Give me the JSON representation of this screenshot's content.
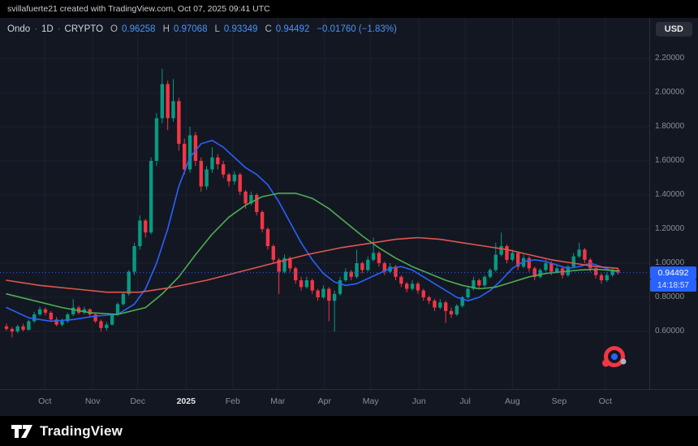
{
  "attribution": "svillafuerte21 created with TradingView.com, Oct 07, 2025 09:41 UTC",
  "legend": {
    "symbol": "Ondo",
    "separator": "·",
    "interval": "1D",
    "market": "CRYPTO",
    "open_label": "O",
    "open": "0.96258",
    "high_label": "H",
    "high": "0.97068",
    "low_label": "L",
    "low": "0.93349",
    "close_label": "C",
    "close": "0.94492",
    "change": "−0.01760 (−1.83%)"
  },
  "currency_button": "USD",
  "price_scale": {
    "labels": [
      "2.20000",
      "2.00000",
      "1.80000",
      "1.60000",
      "1.40000",
      "1.20000",
      "1.00000",
      "0.80000",
      "0.60000"
    ],
    "last_price_label": "0.94492",
    "countdown": "14:18:57"
  },
  "footer": {
    "brand": "TradingView",
    "logo_icon": "tradingview-logo"
  },
  "icons": {
    "sticker": "red-record-sticker-icon"
  },
  "colors": {
    "background": "#131722",
    "frame": "#000000",
    "grid": "#1c2230",
    "border": "#2a2e39",
    "up": "#089981",
    "down": "#f23645",
    "accent": "#2962FF",
    "ma_fast": "#2962FF",
    "ma_mid": "#4CAF50",
    "ma_slow": "#E0564F",
    "axis_text": "#8a8e99",
    "value_text": "#4894f8"
  },
  "chart_data": {
    "type": "candlestick",
    "title": "Ondo 1D CRYPTO",
    "ylabel": "Price (USD)",
    "ylim": [
      0.52,
      2.25
    ],
    "grid": true,
    "price_gridlines": [
      2.2,
      2.0,
      1.8,
      1.6,
      1.4,
      1.2,
      1.0,
      0.8,
      0.6
    ],
    "time_ticks": [
      {
        "label": "Oct",
        "index": 6.9
      },
      {
        "label": "Nov",
        "index": 15.5
      },
      {
        "label": "Dec",
        "index": 23.6
      },
      {
        "label": "2025",
        "index": 32.3,
        "emphasis": true
      },
      {
        "label": "Feb",
        "index": 40.7
      },
      {
        "label": "Mar",
        "index": 48.8
      },
      {
        "label": "Apr",
        "index": 57.2
      },
      {
        "label": "May",
        "index": 65.5
      },
      {
        "label": "Jun",
        "index": 74.2
      },
      {
        "label": "Jul",
        "index": 82.5
      },
      {
        "label": "Aug",
        "index": 91.0
      },
      {
        "label": "Sep",
        "index": 99.4
      },
      {
        "label": "Oct",
        "index": 107.7
      }
    ],
    "last_price": 0.94492,
    "price_line": 0.94492,
    "candles": [
      [
        0.63,
        0.645,
        0.605,
        0.615
      ],
      [
        0.615,
        0.625,
        0.565,
        0.6
      ],
      [
        0.6,
        0.64,
        0.59,
        0.63
      ],
      [
        0.63,
        0.645,
        0.6,
        0.61
      ],
      [
        0.61,
        0.67,
        0.605,
        0.66
      ],
      [
        0.66,
        0.715,
        0.65,
        0.7
      ],
      [
        0.7,
        0.745,
        0.69,
        0.73
      ],
      [
        0.73,
        0.74,
        0.695,
        0.71
      ],
      [
        0.71,
        0.72,
        0.66,
        0.67
      ],
      [
        0.67,
        0.685,
        0.63,
        0.64
      ],
      [
        0.64,
        0.675,
        0.63,
        0.66
      ],
      [
        0.66,
        0.71,
        0.65,
        0.7
      ],
      [
        0.7,
        0.79,
        0.69,
        0.74
      ],
      [
        0.74,
        0.75,
        0.7,
        0.71
      ],
      [
        0.71,
        0.745,
        0.7,
        0.73
      ],
      [
        0.73,
        0.735,
        0.685,
        0.7
      ],
      [
        0.7,
        0.71,
        0.65,
        0.66
      ],
      [
        0.66,
        0.67,
        0.6,
        0.62
      ],
      [
        0.62,
        0.655,
        0.605,
        0.64
      ],
      [
        0.64,
        0.705,
        0.635,
        0.7
      ],
      [
        0.7,
        0.77,
        0.69,
        0.76
      ],
      [
        0.76,
        0.83,
        0.75,
        0.82
      ],
      [
        0.82,
        0.96,
        0.81,
        0.95
      ],
      [
        0.95,
        1.12,
        0.93,
        1.1
      ],
      [
        1.1,
        1.28,
        1.08,
        1.25
      ],
      [
        1.25,
        1.26,
        1.15,
        1.18
      ],
      [
        1.18,
        1.62,
        1.17,
        1.6
      ],
      [
        1.6,
        1.88,
        1.57,
        1.85
      ],
      [
        1.85,
        2.14,
        1.82,
        2.05
      ],
      [
        2.05,
        2.07,
        1.78,
        1.85
      ],
      [
        1.85,
        2.08,
        1.83,
        1.95
      ],
      [
        1.95,
        1.97,
        1.66,
        1.7
      ],
      [
        1.7,
        1.73,
        1.52,
        1.55
      ],
      [
        1.55,
        1.8,
        1.53,
        1.75
      ],
      [
        1.75,
        1.77,
        1.57,
        1.6
      ],
      [
        1.6,
        1.62,
        1.42,
        1.45
      ],
      [
        1.45,
        1.57,
        1.43,
        1.55
      ],
      [
        1.55,
        1.68,
        1.53,
        1.62
      ],
      [
        1.62,
        1.64,
        1.55,
        1.58
      ],
      [
        1.58,
        1.6,
        1.5,
        1.52
      ],
      [
        1.52,
        1.53,
        1.45,
        1.48
      ],
      [
        1.48,
        1.54,
        1.46,
        1.52
      ],
      [
        1.52,
        1.53,
        1.4,
        1.42
      ],
      [
        1.42,
        1.43,
        1.32,
        1.35
      ],
      [
        1.35,
        1.42,
        1.34,
        1.4
      ],
      [
        1.4,
        1.41,
        1.28,
        1.3
      ],
      [
        1.3,
        1.31,
        1.18,
        1.2
      ],
      [
        1.2,
        1.21,
        1.08,
        1.1
      ],
      [
        1.1,
        1.11,
        1.0,
        1.02
      ],
      [
        1.02,
        1.03,
        0.82,
        0.95
      ],
      [
        0.95,
        1.05,
        0.94,
        1.03
      ],
      [
        1.03,
        1.04,
        0.95,
        0.97
      ],
      [
        0.97,
        0.98,
        0.88,
        0.9
      ],
      [
        0.9,
        0.92,
        0.84,
        0.86
      ],
      [
        0.86,
        0.92,
        0.85,
        0.9
      ],
      [
        0.9,
        0.91,
        0.82,
        0.84
      ],
      [
        0.84,
        0.85,
        0.78,
        0.8
      ],
      [
        0.8,
        0.87,
        0.79,
        0.85
      ],
      [
        0.85,
        0.86,
        0.66,
        0.78
      ],
      [
        0.78,
        0.84,
        0.6,
        0.82
      ],
      [
        0.82,
        0.92,
        0.81,
        0.9
      ],
      [
        0.9,
        0.97,
        0.89,
        0.95
      ],
      [
        0.95,
        0.96,
        0.9,
        0.92
      ],
      [
        0.92,
        1.08,
        0.91,
        1.0
      ],
      [
        1.0,
        1.01,
        0.94,
        0.96
      ],
      [
        0.96,
        1.04,
        0.95,
        1.02
      ],
      [
        1.02,
        1.15,
        1.01,
        1.06
      ],
      [
        1.06,
        1.07,
        0.98,
        1.0
      ],
      [
        1.0,
        1.01,
        0.93,
        0.95
      ],
      [
        0.95,
        1.0,
        0.94,
        0.98
      ],
      [
        0.98,
        0.99,
        0.9,
        0.92
      ],
      [
        0.92,
        0.93,
        0.86,
        0.88
      ],
      [
        0.88,
        0.89,
        0.83,
        0.85
      ],
      [
        0.85,
        0.9,
        0.84,
        0.88
      ],
      [
        0.88,
        0.89,
        0.82,
        0.84
      ],
      [
        0.84,
        0.85,
        0.78,
        0.8
      ],
      [
        0.8,
        0.81,
        0.76,
        0.78
      ],
      [
        0.78,
        0.79,
        0.72,
        0.74
      ],
      [
        0.74,
        0.79,
        0.73,
        0.77
      ],
      [
        0.77,
        0.78,
        0.65,
        0.72
      ],
      [
        0.72,
        0.74,
        0.68,
        0.7
      ],
      [
        0.7,
        0.76,
        0.69,
        0.75
      ],
      [
        0.75,
        0.81,
        0.74,
        0.8
      ],
      [
        0.8,
        0.86,
        0.79,
        0.85
      ],
      [
        0.85,
        0.92,
        0.84,
        0.9
      ],
      [
        0.9,
        0.91,
        0.85,
        0.87
      ],
      [
        0.87,
        0.93,
        0.86,
        0.92
      ],
      [
        0.92,
        0.97,
        0.91,
        0.96
      ],
      [
        0.96,
        1.12,
        0.95,
        1.05
      ],
      [
        1.05,
        1.18,
        1.04,
        1.1
      ],
      [
        1.1,
        1.11,
        1.0,
        1.02
      ],
      [
        1.02,
        1.08,
        1.01,
        1.06
      ],
      [
        1.06,
        1.07,
        0.96,
        0.98
      ],
      [
        0.98,
        1.05,
        0.97,
        1.03
      ],
      [
        1.03,
        1.04,
        0.95,
        0.97
      ],
      [
        0.97,
        0.98,
        0.9,
        0.92
      ],
      [
        0.92,
        0.97,
        0.91,
        0.96
      ],
      [
        0.96,
        1.02,
        0.95,
        1.0
      ],
      [
        1.0,
        1.01,
        0.93,
        0.95
      ],
      [
        0.95,
        0.99,
        0.94,
        0.97
      ],
      [
        0.97,
        0.98,
        0.91,
        0.93
      ],
      [
        0.93,
        0.99,
        0.92,
        0.98
      ],
      [
        0.98,
        1.06,
        0.97,
        1.04
      ],
      [
        1.04,
        1.12,
        1.03,
        1.08
      ],
      [
        1.08,
        1.09,
        1.0,
        1.02
      ],
      [
        1.02,
        1.03,
        0.95,
        0.97
      ],
      [
        0.97,
        0.98,
        0.91,
        0.93
      ],
      [
        0.93,
        0.94,
        0.88,
        0.9
      ],
      [
        0.9,
        0.945,
        0.89,
        0.93
      ],
      [
        0.93,
        0.975,
        0.92,
        0.963
      ],
      [
        0.96258,
        0.97068,
        0.93349,
        0.94492
      ]
    ],
    "moving_averages": [
      {
        "name": "ma-fast-line",
        "color_key": "ma_fast",
        "points": [
          [
            0,
            0.74
          ],
          [
            4,
            0.68
          ],
          [
            8,
            0.66
          ],
          [
            12,
            0.67
          ],
          [
            16,
            0.69
          ],
          [
            20,
            0.7
          ],
          [
            23,
            0.76
          ],
          [
            25,
            0.85
          ],
          [
            27,
            1.0
          ],
          [
            29,
            1.2
          ],
          [
            31,
            1.45
          ],
          [
            33,
            1.62
          ],
          [
            35,
            1.7
          ],
          [
            37,
            1.72
          ],
          [
            39,
            1.68
          ],
          [
            41,
            1.62
          ],
          [
            43,
            1.56
          ],
          [
            45,
            1.52
          ],
          [
            47,
            1.46
          ],
          [
            49,
            1.36
          ],
          [
            51,
            1.24
          ],
          [
            53,
            1.12
          ],
          [
            55,
            1.02
          ],
          [
            57,
            0.94
          ],
          [
            59,
            0.89
          ],
          [
            61,
            0.87
          ],
          [
            63,
            0.88
          ],
          [
            65,
            0.91
          ],
          [
            67,
            0.94
          ],
          [
            69,
            0.97
          ],
          [
            71,
            0.98
          ],
          [
            73,
            0.96
          ],
          [
            75,
            0.92
          ],
          [
            77,
            0.88
          ],
          [
            79,
            0.84
          ],
          [
            81,
            0.8
          ],
          [
            83,
            0.78
          ],
          [
            85,
            0.8
          ],
          [
            87,
            0.84
          ],
          [
            89,
            0.9
          ],
          [
            91,
            0.97
          ],
          [
            93,
            1.01
          ],
          [
            95,
            1.02
          ],
          [
            97,
            1.01
          ],
          [
            99,
            0.99
          ],
          [
            101,
            0.97
          ],
          [
            103,
            0.98
          ],
          [
            105,
            1.0
          ],
          [
            107,
            0.98
          ],
          [
            109,
            0.955
          ],
          [
            110,
            0.95
          ]
        ]
      },
      {
        "name": "ma-mid-line",
        "color_key": "ma_mid",
        "points": [
          [
            0,
            0.82
          ],
          [
            5,
            0.78
          ],
          [
            10,
            0.74
          ],
          [
            15,
            0.71
          ],
          [
            20,
            0.7
          ],
          [
            25,
            0.74
          ],
          [
            28,
            0.82
          ],
          [
            31,
            0.92
          ],
          [
            34,
            1.05
          ],
          [
            37,
            1.17
          ],
          [
            40,
            1.27
          ],
          [
            43,
            1.34
          ],
          [
            46,
            1.39
          ],
          [
            49,
            1.41
          ],
          [
            52,
            1.41
          ],
          [
            55,
            1.38
          ],
          [
            58,
            1.32
          ],
          [
            61,
            1.24
          ],
          [
            64,
            1.16
          ],
          [
            67,
            1.09
          ],
          [
            70,
            1.03
          ],
          [
            73,
            0.98
          ],
          [
            76,
            0.94
          ],
          [
            79,
            0.9
          ],
          [
            82,
            0.87
          ],
          [
            85,
            0.85
          ],
          [
            88,
            0.86
          ],
          [
            91,
            0.89
          ],
          [
            94,
            0.92
          ],
          [
            97,
            0.94
          ],
          [
            100,
            0.95
          ],
          [
            103,
            0.96
          ],
          [
            106,
            0.965
          ],
          [
            110,
            0.955
          ]
        ]
      },
      {
        "name": "ma-slow-line",
        "color_key": "ma_slow",
        "points": [
          [
            0,
            0.9
          ],
          [
            6,
            0.87
          ],
          [
            12,
            0.85
          ],
          [
            18,
            0.83
          ],
          [
            24,
            0.83
          ],
          [
            30,
            0.86
          ],
          [
            36,
            0.9
          ],
          [
            42,
            0.95
          ],
          [
            48,
            1.0
          ],
          [
            54,
            1.05
          ],
          [
            60,
            1.09
          ],
          [
            66,
            1.12
          ],
          [
            70,
            1.14
          ],
          [
            74,
            1.15
          ],
          [
            78,
            1.14
          ],
          [
            82,
            1.12
          ],
          [
            86,
            1.1
          ],
          [
            90,
            1.08
          ],
          [
            94,
            1.05
          ],
          [
            98,
            1.02
          ],
          [
            102,
            1.0
          ],
          [
            106,
            0.98
          ],
          [
            110,
            0.97
          ]
        ]
      }
    ]
  }
}
